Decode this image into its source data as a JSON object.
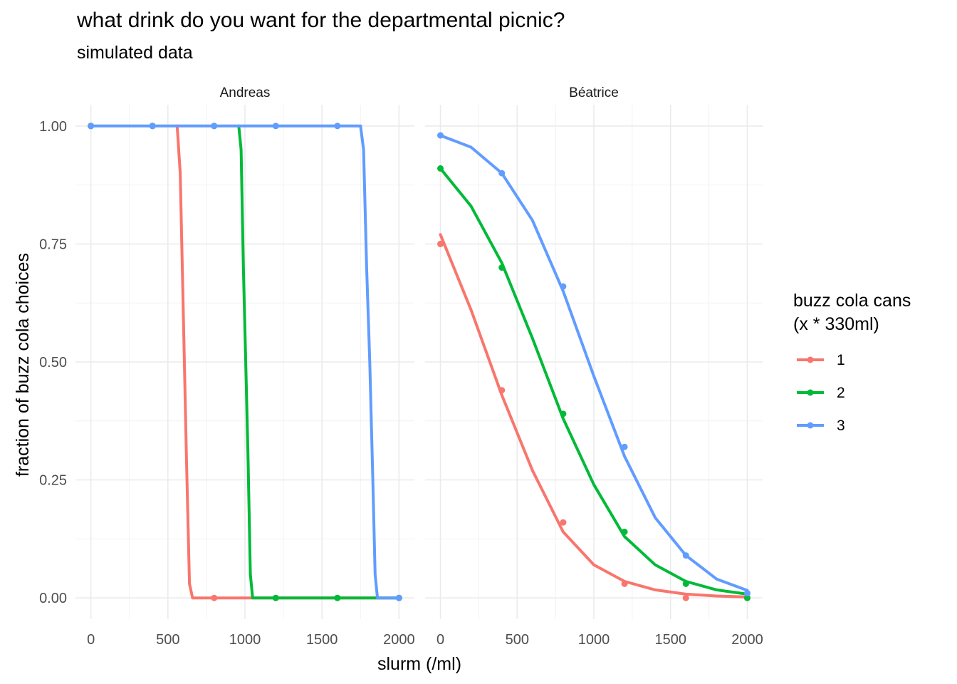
{
  "chart_data": {
    "type": "line",
    "title": "what drink do you want for the departmental picnic?",
    "subtitle": "simulated data",
    "xlabel": "slurm (/ml)",
    "ylabel": "fraction of buzz cola choices",
    "xlim": [
      0,
      2000
    ],
    "ylim": [
      0,
      1
    ],
    "x_ticks": [
      0,
      500,
      1000,
      1500,
      2000
    ],
    "y_ticks": [
      0,
      0.25,
      0.5,
      0.75,
      1
    ],
    "y_tick_labels": [
      "0.00",
      "0.25",
      "0.50",
      "0.75",
      "1.00"
    ],
    "grid": true,
    "legend": {
      "title_lines": [
        "buzz cola cans",
        "(x * 330ml)"
      ],
      "placement": "right",
      "entries": [
        {
          "label": "1",
          "color": "#F8766D"
        },
        {
          "label": "2",
          "color": "#00BA38"
        },
        {
          "label": "3",
          "color": "#619CFF"
        }
      ]
    },
    "panels": [
      {
        "name": "Andreas",
        "series": [
          {
            "name": "1",
            "color": "#F8766D",
            "points": [
              [
                0,
                1
              ],
              [
                400,
                1
              ],
              [
                800,
                0
              ],
              [
                1200,
                0
              ],
              [
                1600,
                0
              ],
              [
                2000,
                0
              ]
            ],
            "curve": [
              [
                560,
                1
              ],
              [
                580,
                0.9
              ],
              [
                600,
                0.6
              ],
              [
                620,
                0.3
              ],
              [
                640,
                0.03
              ],
              [
                660,
                0
              ],
              [
                2000,
                0
              ]
            ]
          },
          {
            "name": "2",
            "color": "#00BA38",
            "points": [
              [
                0,
                1
              ],
              [
                400,
                1
              ],
              [
                800,
                1
              ],
              [
                1200,
                0
              ],
              [
                1600,
                0
              ],
              [
                2000,
                0
              ]
            ],
            "curve": [
              [
                960,
                1
              ],
              [
                975,
                0.95
              ],
              [
                990,
                0.7
              ],
              [
                1005,
                0.5
              ],
              [
                1020,
                0.3
              ],
              [
                1035,
                0.05
              ],
              [
                1050,
                0
              ],
              [
                2000,
                0
              ]
            ]
          },
          {
            "name": "3",
            "color": "#619CFF",
            "points": [
              [
                0,
                1
              ],
              [
                400,
                1
              ],
              [
                800,
                1
              ],
              [
                1200,
                1
              ],
              [
                1600,
                1
              ],
              [
                2000,
                0
              ]
            ],
            "curve": [
              [
                0,
                1
              ],
              [
                1750,
                1
              ],
              [
                1770,
                0.95
              ],
              [
                1790,
                0.7
              ],
              [
                1810,
                0.5
              ],
              [
                1830,
                0.25
              ],
              [
                1845,
                0.05
              ],
              [
                1860,
                0
              ],
              [
                2000,
                0
              ]
            ]
          }
        ]
      },
      {
        "name": "Béatrice",
        "series": [
          {
            "name": "1",
            "color": "#F8766D",
            "points": [
              [
                0,
                0.75
              ],
              [
                400,
                0.44
              ],
              [
                800,
                0.16
              ],
              [
                1200,
                0.03
              ],
              [
                1600,
                0
              ],
              [
                2000,
                0
              ]
            ],
            "curve": [
              [
                0,
                0.77
              ],
              [
                200,
                0.61
              ],
              [
                400,
                0.43
              ],
              [
                600,
                0.27
              ],
              [
                800,
                0.14
              ],
              [
                1000,
                0.07
              ],
              [
                1200,
                0.035
              ],
              [
                1400,
                0.017
              ],
              [
                1600,
                0.008
              ],
              [
                1800,
                0.004
              ],
              [
                2000,
                0.002
              ]
            ]
          },
          {
            "name": "2",
            "color": "#00BA38",
            "points": [
              [
                0,
                0.91
              ],
              [
                400,
                0.7
              ],
              [
                800,
                0.39
              ],
              [
                1200,
                0.14
              ],
              [
                1600,
                0.03
              ],
              [
                2000,
                0
              ]
            ],
            "curve": [
              [
                0,
                0.91
              ],
              [
                200,
                0.83
              ],
              [
                400,
                0.71
              ],
              [
                600,
                0.55
              ],
              [
                800,
                0.38
              ],
              [
                1000,
                0.24
              ],
              [
                1200,
                0.13
              ],
              [
                1400,
                0.07
              ],
              [
                1600,
                0.035
              ],
              [
                1800,
                0.017
              ],
              [
                2000,
                0.008
              ]
            ]
          },
          {
            "name": "3",
            "color": "#619CFF",
            "points": [
              [
                0,
                0.98
              ],
              [
                400,
                0.9
              ],
              [
                800,
                0.66
              ],
              [
                1200,
                0.32
              ],
              [
                1600,
                0.09
              ],
              [
                2000,
                0.01
              ]
            ],
            "curve": [
              [
                0,
                0.98
              ],
              [
                200,
                0.955
              ],
              [
                400,
                0.9
              ],
              [
                600,
                0.8
              ],
              [
                800,
                0.65
              ],
              [
                1000,
                0.47
              ],
              [
                1200,
                0.3
              ],
              [
                1400,
                0.17
              ],
              [
                1600,
                0.09
              ],
              [
                1800,
                0.04
              ],
              [
                2000,
                0.016
              ]
            ]
          }
        ]
      }
    ]
  }
}
